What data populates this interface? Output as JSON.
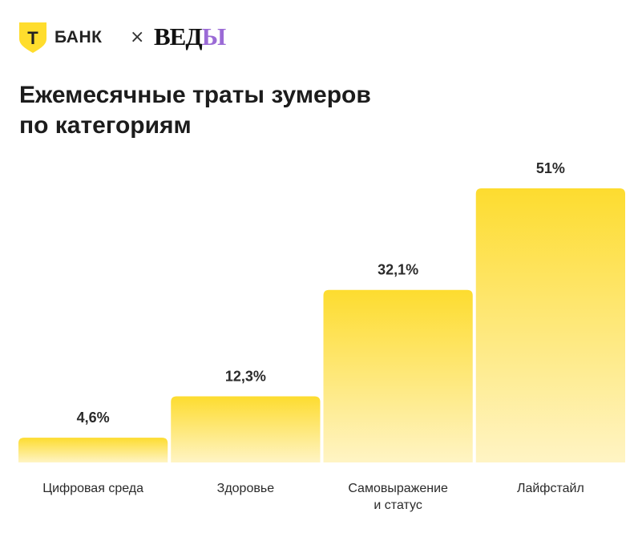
{
  "brand": {
    "bank_logo_letter": "Т",
    "bank_name": "БАНК",
    "separator": "×",
    "partner_name_main": "ВЕД",
    "partner_name_accent": "Ы",
    "bank_color": "#FFDD2D",
    "partner_accent_color": "#9B6BD6"
  },
  "title": "Ежемесячные траты зумеров\nпо категориям",
  "chart_data": {
    "type": "bar",
    "title": "Ежемесячные траты зумеров по категориям",
    "categories": [
      "Цифровая среда",
      "Здоровье",
      "Самовыражение\nи статус",
      "Лайфстайл"
    ],
    "values": [
      4.6,
      12.3,
      32.1,
      51
    ],
    "value_labels": [
      "4,6%",
      "12,3%",
      "32,1%",
      "51%"
    ],
    "unit": "%",
    "xlabel": "",
    "ylabel": "",
    "ylim": [
      0,
      51
    ],
    "grid": false,
    "legend": "none",
    "bar_color_top": "#FDDC2F",
    "bar_color_bottom": "#FFF4C4"
  }
}
